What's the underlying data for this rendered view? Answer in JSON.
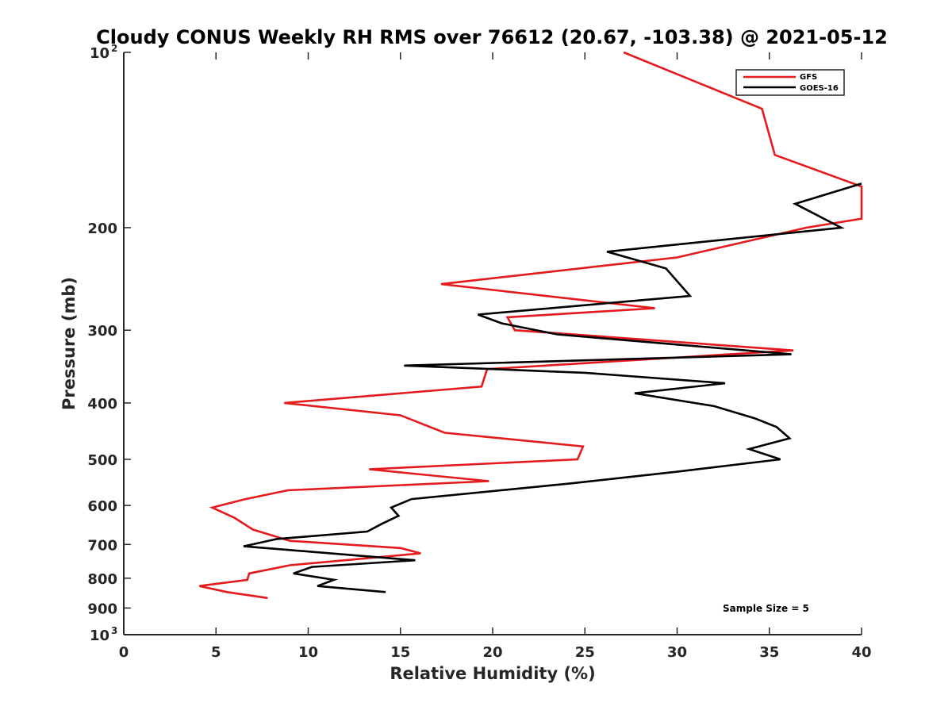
{
  "chart_data": {
    "type": "line",
    "title": "Cloudy CONUS Weekly RH RMS over 76612 (20.67, -103.38) @ 2021-05-12",
    "xlabel": "Relative Humidity (%)",
    "ylabel": "Pressure (mb)",
    "xlim": [
      0,
      40
    ],
    "ylim": [
      100,
      1000
    ],
    "yscale": "log",
    "y_direction": "reversed",
    "x_ticks": [
      0,
      5,
      10,
      15,
      20,
      25,
      30,
      35,
      40
    ],
    "y_ticks": [
      {
        "value": 100,
        "label": "10",
        "exponent": "2"
      },
      {
        "value": 200,
        "label": "200"
      },
      {
        "value": 300,
        "label": "300"
      },
      {
        "value": 400,
        "label": "400"
      },
      {
        "value": 500,
        "label": "500"
      },
      {
        "value": 600,
        "label": "600"
      },
      {
        "value": 700,
        "label": "700"
      },
      {
        "value": 800,
        "label": "800"
      },
      {
        "value": 900,
        "label": "900"
      },
      {
        "value": 1000,
        "label": "10",
        "exponent": "3"
      }
    ],
    "legend_position": "top-right",
    "annotation": "Sample Size = 5",
    "series": [
      {
        "name": "GFS",
        "color": "#e41a1c",
        "points": [
          {
            "x": 27.1,
            "y": 100
          },
          {
            "x": 34.6,
            "y": 125
          },
          {
            "x": 35.3,
            "y": 150
          },
          {
            "x": 40.0,
            "y": 170
          },
          {
            "x": 40.0,
            "y": 193
          },
          {
            "x": 37.0,
            "y": 200
          },
          {
            "x": 30.0,
            "y": 225
          },
          {
            "x": 17.2,
            "y": 250
          },
          {
            "x": 28.8,
            "y": 275
          },
          {
            "x": 20.8,
            "y": 285
          },
          {
            "x": 21.2,
            "y": 300
          },
          {
            "x": 36.3,
            "y": 325
          },
          {
            "x": 19.7,
            "y": 350
          },
          {
            "x": 19.4,
            "y": 375
          },
          {
            "x": 8.7,
            "y": 400
          },
          {
            "x": 15.0,
            "y": 420
          },
          {
            "x": 17.4,
            "y": 450
          },
          {
            "x": 24.9,
            "y": 475
          },
          {
            "x": 24.6,
            "y": 500
          },
          {
            "x": 13.3,
            "y": 520
          },
          {
            "x": 19.8,
            "y": 545
          },
          {
            "x": 8.9,
            "y": 565
          },
          {
            "x": 6.6,
            "y": 585
          },
          {
            "x": 4.8,
            "y": 605
          },
          {
            "x": 6.0,
            "y": 630
          },
          {
            "x": 7.0,
            "y": 660
          },
          {
            "x": 9.0,
            "y": 690
          },
          {
            "x": 15.0,
            "y": 710
          },
          {
            "x": 16.1,
            "y": 725
          },
          {
            "x": 9.0,
            "y": 760
          },
          {
            "x": 6.8,
            "y": 785
          },
          {
            "x": 6.7,
            "y": 805
          },
          {
            "x": 4.1,
            "y": 825
          },
          {
            "x": 5.6,
            "y": 845
          },
          {
            "x": 7.8,
            "y": 865
          }
        ]
      },
      {
        "name": "GOES-16",
        "color": "#000000",
        "points": [
          {
            "x": 40.0,
            "y": 168
          },
          {
            "x": 36.4,
            "y": 182
          },
          {
            "x": 38.9,
            "y": 200
          },
          {
            "x": 26.2,
            "y": 220
          },
          {
            "x": 29.4,
            "y": 235
          },
          {
            "x": 30.7,
            "y": 262
          },
          {
            "x": 19.2,
            "y": 282
          },
          {
            "x": 20.5,
            "y": 292
          },
          {
            "x": 23.5,
            "y": 305
          },
          {
            "x": 36.2,
            "y": 330
          },
          {
            "x": 15.2,
            "y": 345
          },
          {
            "x": 25.0,
            "y": 355
          },
          {
            "x": 32.6,
            "y": 370
          },
          {
            "x": 27.7,
            "y": 385
          },
          {
            "x": 32.0,
            "y": 405
          },
          {
            "x": 34.2,
            "y": 425
          },
          {
            "x": 35.4,
            "y": 440
          },
          {
            "x": 36.1,
            "y": 460
          },
          {
            "x": 33.9,
            "y": 480
          },
          {
            "x": 35.6,
            "y": 500
          },
          {
            "x": 30.0,
            "y": 525
          },
          {
            "x": 24.2,
            "y": 550
          },
          {
            "x": 15.6,
            "y": 585
          },
          {
            "x": 14.5,
            "y": 605
          },
          {
            "x": 14.9,
            "y": 625
          },
          {
            "x": 14.0,
            "y": 645
          },
          {
            "x": 13.2,
            "y": 665
          },
          {
            "x": 8.3,
            "y": 685
          },
          {
            "x": 6.5,
            "y": 705
          },
          {
            "x": 15.8,
            "y": 745
          },
          {
            "x": 10.2,
            "y": 765
          },
          {
            "x": 9.2,
            "y": 785
          },
          {
            "x": 11.4,
            "y": 805
          },
          {
            "x": 10.5,
            "y": 825
          },
          {
            "x": 14.2,
            "y": 845
          }
        ]
      }
    ]
  }
}
